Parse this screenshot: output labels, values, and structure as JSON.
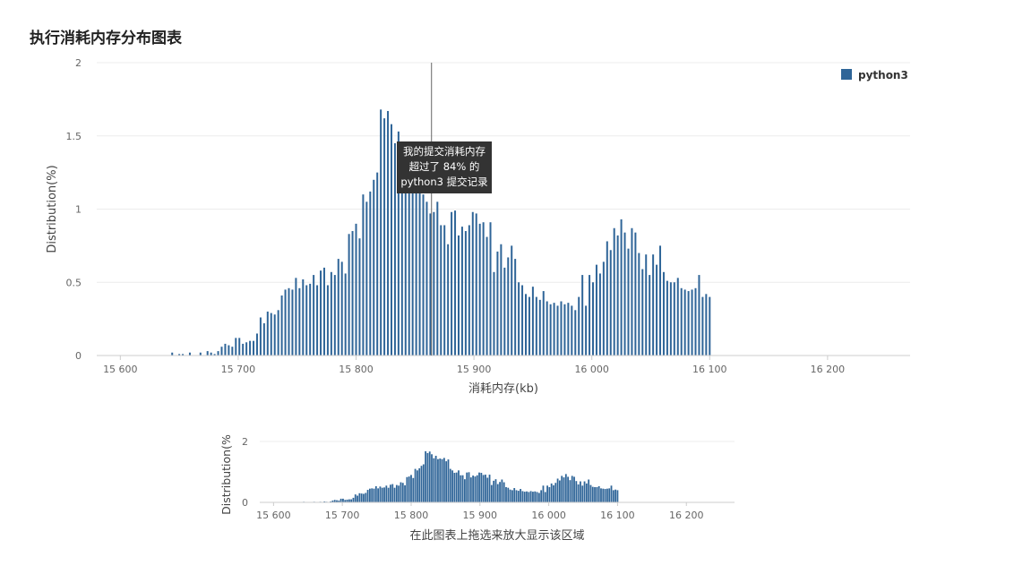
{
  "title": "执行消耗内存分布图表",
  "tooltip": {
    "line1": "我的提交消耗内存",
    "line2": "超过了 84% 的",
    "line3": "python3 提交记录"
  },
  "navigator_hint": "在此图表上拖选来放大显示该区域",
  "colors": {
    "bar": "#2f6598",
    "grid": "#ececec",
    "axis": "#cccccc",
    "crosshair": "#666666",
    "tooltip_bg": "#333333"
  },
  "chart_data": {
    "type": "bar",
    "series": [
      {
        "name": "python3",
        "x_start": 15644,
        "x_step": 3,
        "values": [
          0.02,
          0,
          0.01,
          0.01,
          0,
          0.02,
          0,
          0,
          0.02,
          0,
          0.03,
          0.02,
          0.01,
          0.03,
          0.06,
          0.08,
          0.07,
          0.06,
          0.12,
          0.12,
          0.08,
          0.09,
          0.1,
          0.1,
          0.15,
          0.26,
          0.22,
          0.3,
          0.29,
          0.28,
          0.31,
          0.41,
          0.45,
          0.46,
          0.45,
          0.53,
          0.46,
          0.52,
          0.48,
          0.49,
          0.55,
          0.48,
          0.58,
          0.6,
          0.48,
          0.57,
          0.55,
          0.66,
          0.64,
          0.56,
          0.83,
          0.85,
          0.9,
          0.8,
          1.1,
          1.05,
          1.12,
          1.2,
          1.25,
          1.68,
          1.62,
          1.67,
          1.58,
          1.45,
          1.53,
          1.42,
          1.44,
          1.42,
          1.46,
          1.35,
          1.41,
          1.1,
          1.05,
          0.97,
          0.98,
          1.05,
          0.89,
          0.89,
          0.76,
          0.98,
          0.99,
          0.82,
          0.88,
          0.85,
          0.89,
          0.98,
          0.97,
          0.9,
          0.91,
          0.81,
          0.91,
          0.57,
          0.71,
          0.76,
          0.6,
          0.67,
          0.75,
          0.66,
          0.5,
          0.48,
          0.42,
          0.4,
          0.47,
          0.4,
          0.38,
          0.44,
          0.37,
          0.35,
          0.36,
          0.34,
          0.37,
          0.35,
          0.36,
          0.34,
          0.31,
          0.4,
          0.55,
          0.34,
          0.55,
          0.5,
          0.62,
          0.56,
          0.64,
          0.78,
          0.72,
          0.87,
          0.82,
          0.93,
          0.84,
          0.73,
          0.87,
          0.84,
          0.7,
          0.59,
          0.69,
          0.55,
          0.69,
          0.62,
          0.75,
          0.57,
          0.51,
          0.5,
          0.5,
          0.53,
          0.46,
          0.45,
          0.44,
          0.45,
          0.46,
          0.55,
          0.4,
          0.42,
          0.4
        ]
      }
    ],
    "xlabel": "消耗内存(kb)",
    "ylabel": "Distribution(%)",
    "xlim": [
      15580,
      16270
    ],
    "ylim": [
      0,
      2
    ],
    "x_ticks": [
      15600,
      15700,
      15800,
      15900,
      16000,
      16100,
      16200
    ],
    "x_tick_labels": [
      "15 600",
      "15 700",
      "15 800",
      "15 900",
      "16 000",
      "16 100",
      "16 200"
    ],
    "y_ticks": [
      0,
      0.5,
      1,
      1.5,
      2
    ],
    "y_tick_labels": [
      "0",
      "0.5",
      "1",
      "1.5",
      "2"
    ],
    "crosshair_x": 15864,
    "legend_position": "top-right",
    "grid": true,
    "navigator": {
      "ylabel": "Distribution(%",
      "y_tick_labels": [
        "0",
        "2"
      ],
      "x_tick_labels": [
        "15 600",
        "15 700",
        "15 800",
        "15 900",
        "16 000",
        "16 100",
        "16 200"
      ]
    }
  }
}
